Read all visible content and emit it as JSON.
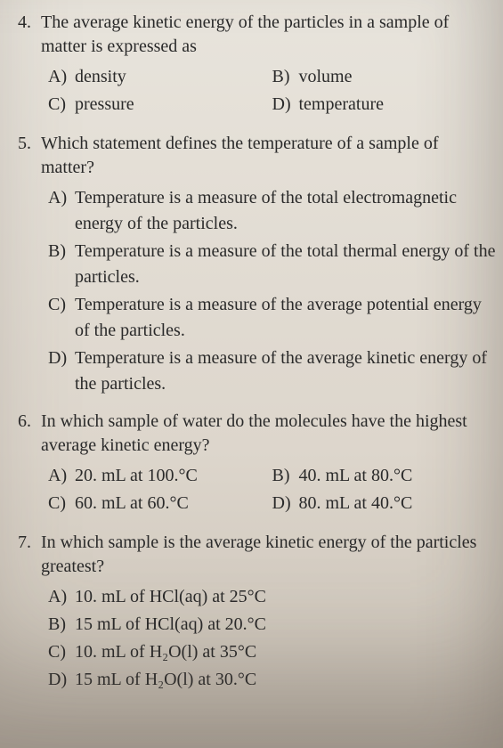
{
  "questions": [
    {
      "number": "4.",
      "stem": "The average kinetic energy of the particles in a sample of matter is expressed as",
      "layout": "two-col",
      "options": [
        {
          "letter": "A)",
          "text": "density"
        },
        {
          "letter": "B)",
          "text": "volume"
        },
        {
          "letter": "C)",
          "text": "pressure"
        },
        {
          "letter": "D)",
          "text": "temperature"
        }
      ]
    },
    {
      "number": "5.",
      "stem": "Which statement defines the temperature of a sample of matter?",
      "layout": "one-col",
      "options": [
        {
          "letter": "A)",
          "text": "Temperature is a measure of the total electromagnetic energy of the particles."
        },
        {
          "letter": "B)",
          "text": "Temperature is a measure of the total thermal energy of the particles."
        },
        {
          "letter": "C)",
          "text": "Temperature is a measure of the average potential energy of the particles."
        },
        {
          "letter": "D)",
          "text": "Temperature is a measure of the average kinetic energy of the particles."
        }
      ]
    },
    {
      "number": "6.",
      "stem": "In which sample of water do the molecules have the highest average kinetic energy?",
      "layout": "two-col",
      "options": [
        {
          "letter": "A)",
          "text": "20. mL at 100.°C"
        },
        {
          "letter": "B)",
          "text": "40. mL at 80.°C"
        },
        {
          "letter": "C)",
          "text": "60. mL at 60.°C"
        },
        {
          "letter": "D)",
          "text": "80. mL at 40.°C"
        }
      ]
    },
    {
      "number": "7.",
      "stem": "In which sample is the average kinetic energy of the particles greatest?",
      "layout": "one-col",
      "options": [
        {
          "letter": "A)",
          "text": "10. mL of HCl(aq) at 25°C"
        },
        {
          "letter": "B)",
          "text": "15 mL of HCl(aq) at 20.°C"
        },
        {
          "letter": "C)",
          "text": "10. mL of H₂O(l) at 35°C"
        },
        {
          "letter": "D)",
          "text": "15 mL of H₂O(l) at 30.°C"
        }
      ]
    }
  ]
}
